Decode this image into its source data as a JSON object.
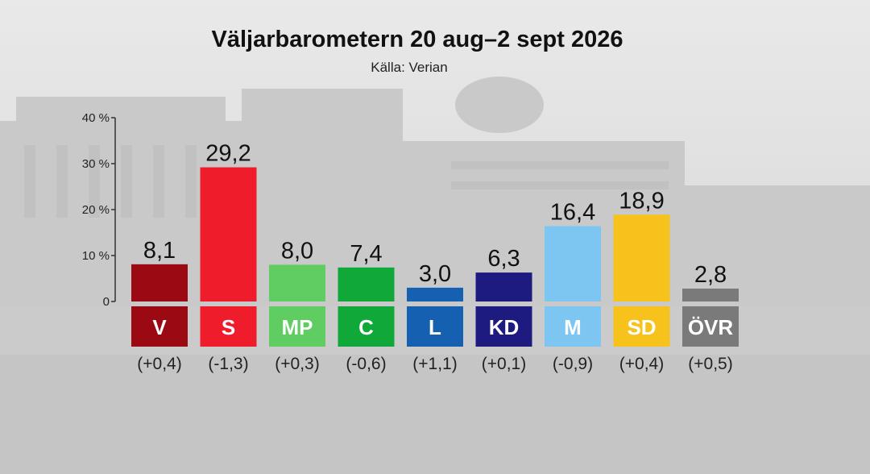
{
  "chart_data": {
    "type": "bar",
    "title": "Väljarbarometern 20 aug–2 sept 2026",
    "subtitle": "Källa: Verian",
    "ylim": [
      0,
      40
    ],
    "yticks": [
      "0",
      "10 %",
      "20 %",
      "30 %",
      "40 %"
    ],
    "grid": false,
    "categories": [
      "V",
      "S",
      "MP",
      "C",
      "L",
      "KD",
      "M",
      "SD",
      "ÖVR"
    ],
    "values": [
      8.1,
      29.2,
      8.0,
      7.4,
      3.0,
      6.3,
      16.4,
      18.9,
      2.8
    ],
    "value_labels": [
      "8,1",
      "29,2",
      "8,0",
      "7,4",
      "3,0",
      "6,3",
      "16,4",
      "18,9",
      "2,8"
    ],
    "changes": [
      "(+0,4)",
      "(-1,3)",
      "(+0,3)",
      "(-0,6)",
      "(+1,1)",
      "(+0,1)",
      "(-0,9)",
      "(+0,4)",
      "(+0,5)"
    ],
    "colors": [
      "#9b0a12",
      "#ef1c2c",
      "#5fcd62",
      "#11a83a",
      "#1560b0",
      "#1d1a80",
      "#7ec6f2",
      "#f7c21c",
      "#7a7a7a"
    ],
    "label_text_colors": [
      "#ffffff",
      "#ffffff",
      "#ffffff",
      "#ffffff",
      "#ffffff",
      "#ffffff",
      "#ffffff",
      "#ffffff",
      "#ffffff"
    ]
  }
}
